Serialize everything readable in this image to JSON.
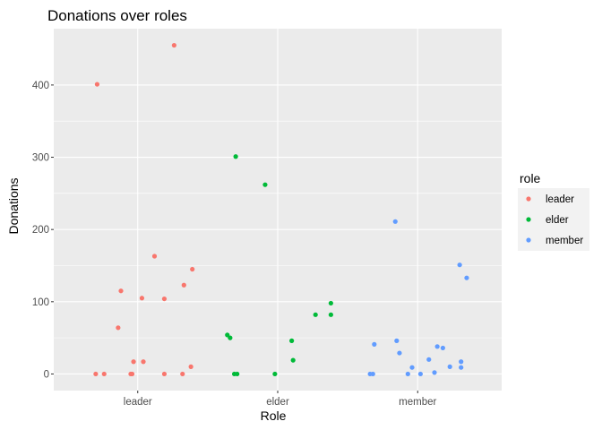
{
  "chart_data": {
    "type": "scatter",
    "title": "Donations over roles",
    "xlabel": "Role",
    "ylabel": "Donations",
    "categories": [
      "leader",
      "elder",
      "member"
    ],
    "y_ticks": [
      0,
      100,
      200,
      300,
      400
    ],
    "y_tick_labels": [
      "0",
      "100",
      "200",
      "300",
      "400"
    ],
    "ylim": [
      -23,
      478
    ],
    "grid": true,
    "legend": {
      "title": "role",
      "placement": "right",
      "entries": [
        "leader",
        "elder",
        "member"
      ]
    },
    "colors": {
      "leader": "#F8766D",
      "elder": "#00BA38",
      "member": "#619CFF"
    },
    "panel_background": "#EBEBEB",
    "series": [
      {
        "name": "leader",
        "points": [
          {
            "x": 0.7,
            "y": 0
          },
          {
            "x": 0.71,
            "y": 401
          },
          {
            "x": 0.76,
            "y": 0
          },
          {
            "x": 0.86,
            "y": 64
          },
          {
            "x": 0.88,
            "y": 115
          },
          {
            "x": 0.95,
            "y": 0
          },
          {
            "x": 0.96,
            "y": 0
          },
          {
            "x": 0.97,
            "y": 17
          },
          {
            "x": 1.03,
            "y": 105
          },
          {
            "x": 1.04,
            "y": 17
          },
          {
            "x": 1.12,
            "y": 163
          },
          {
            "x": 1.19,
            "y": 0
          },
          {
            "x": 1.19,
            "y": 104
          },
          {
            "x": 1.26,
            "y": 455
          },
          {
            "x": 1.32,
            "y": 0
          },
          {
            "x": 1.33,
            "y": 123
          },
          {
            "x": 1.38,
            "y": 10
          },
          {
            "x": 1.39,
            "y": 145
          }
        ]
      },
      {
        "name": "elder",
        "points": [
          {
            "x": 1.64,
            "y": 54
          },
          {
            "x": 1.66,
            "y": 50
          },
          {
            "x": 1.69,
            "y": 0
          },
          {
            "x": 1.7,
            "y": 301
          },
          {
            "x": 1.71,
            "y": 0
          },
          {
            "x": 1.91,
            "y": 262
          },
          {
            "x": 1.98,
            "y": 0
          },
          {
            "x": 2.1,
            "y": 46
          },
          {
            "x": 2.11,
            "y": 19
          },
          {
            "x": 2.27,
            "y": 82
          },
          {
            "x": 2.38,
            "y": 82
          },
          {
            "x": 2.38,
            "y": 98
          }
        ]
      },
      {
        "name": "member",
        "points": [
          {
            "x": 2.66,
            "y": 0
          },
          {
            "x": 2.68,
            "y": 0
          },
          {
            "x": 2.69,
            "y": 41
          },
          {
            "x": 2.84,
            "y": 211
          },
          {
            "x": 2.85,
            "y": 46
          },
          {
            "x": 2.87,
            "y": 29
          },
          {
            "x": 2.93,
            "y": 0
          },
          {
            "x": 2.96,
            "y": 9
          },
          {
            "x": 3.02,
            "y": 0
          },
          {
            "x": 3.08,
            "y": 20
          },
          {
            "x": 3.12,
            "y": 2
          },
          {
            "x": 3.14,
            "y": 38
          },
          {
            "x": 3.18,
            "y": 36
          },
          {
            "x": 3.23,
            "y": 10
          },
          {
            "x": 3.3,
            "y": 151
          },
          {
            "x": 3.31,
            "y": 9
          },
          {
            "x": 3.31,
            "y": 17
          },
          {
            "x": 3.35,
            "y": 133
          }
        ]
      }
    ]
  }
}
